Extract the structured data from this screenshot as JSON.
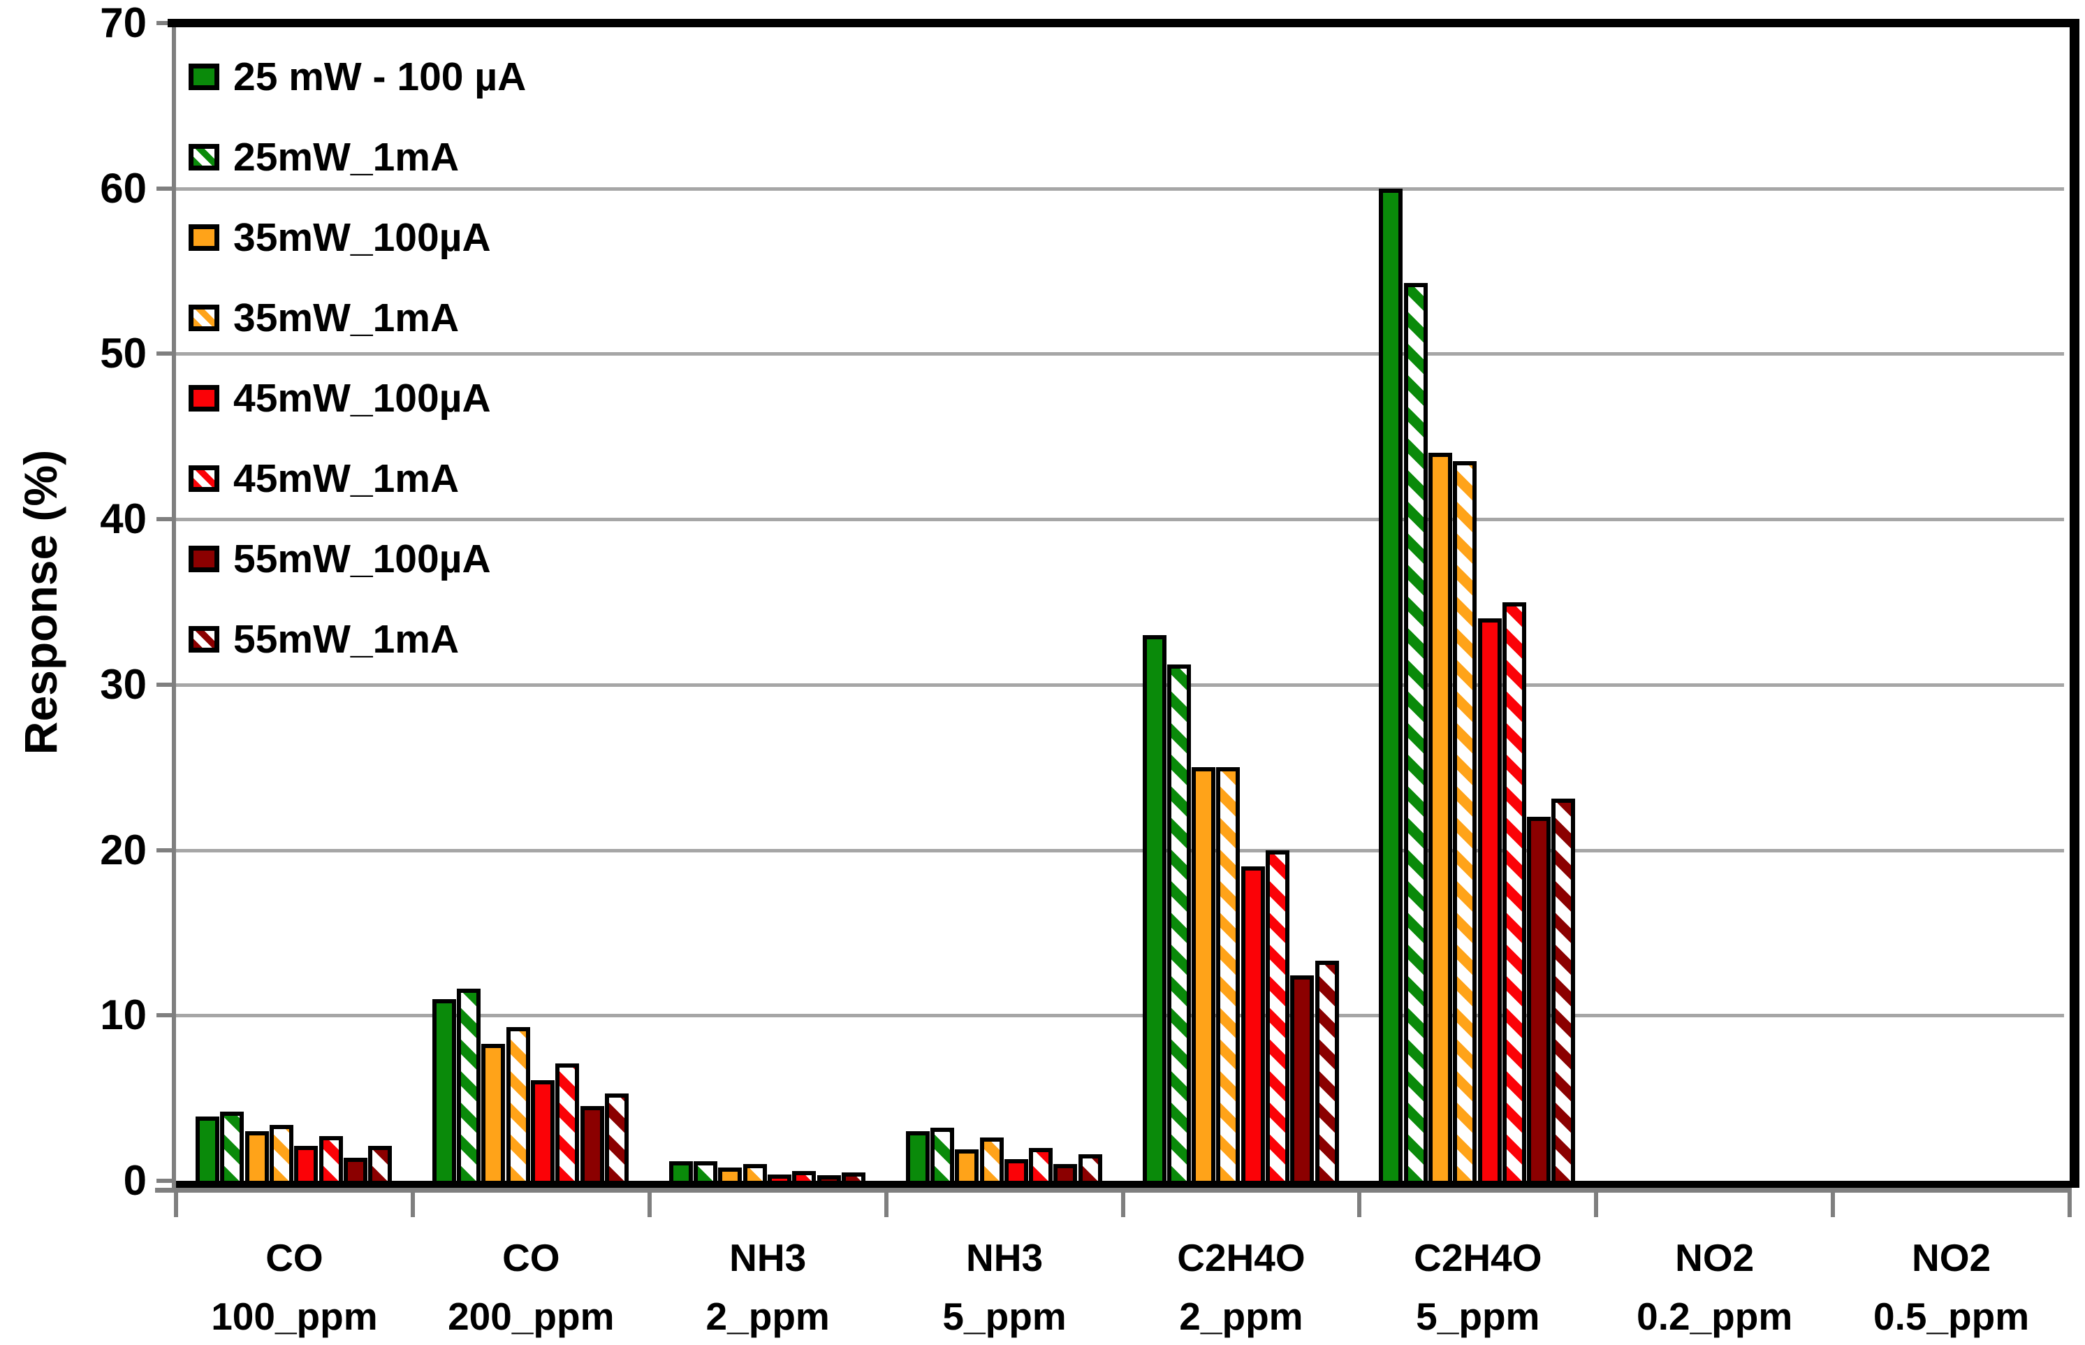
{
  "chart_data": {
    "type": "bar",
    "title": "",
    "ylabel": "Response (%)",
    "xlabel": "",
    "ylim": [
      0,
      70
    ],
    "ytick_step": 10,
    "yticks": [
      0,
      10,
      20,
      30,
      40,
      50,
      60,
      70
    ],
    "grid": "horizontal",
    "legend_position": "inside-top-left",
    "bar_outline_color": "#000000",
    "gridline_color": "#a6a6a6",
    "axis_color": "#7f7f7f",
    "categories": [
      {
        "line1": "CO",
        "line2": "100_ppm"
      },
      {
        "line1": "CO",
        "line2": "200_ppm"
      },
      {
        "line1": "NH3",
        "line2": "2_ppm"
      },
      {
        "line1": "NH3",
        "line2": "5_ppm"
      },
      {
        "line1": "C2H4O",
        "line2": "2_ppm"
      },
      {
        "line1": "C2H4O",
        "line2": "5_ppm"
      },
      {
        "line1": "NO2",
        "line2": "0.2_ppm"
      },
      {
        "line1": "NO2",
        "line2": "0.5_ppm"
      }
    ],
    "series": [
      {
        "name": "25 mW - 100 µA",
        "color": "#0a8a0a",
        "fill": "solid",
        "values": [
          3.9,
          11.0,
          1.2,
          3.0,
          33.0,
          60.0,
          0,
          0
        ]
      },
      {
        "name": "25mW_1mA",
        "color": "#0a8a0a",
        "fill": "hatch",
        "values": [
          4.2,
          11.6,
          1.2,
          3.2,
          31.2,
          54.3,
          0,
          0
        ]
      },
      {
        "name": "35mW_100µA",
        "color": "#ffa319",
        "fill": "solid",
        "values": [
          3.0,
          8.3,
          0.8,
          1.9,
          25.0,
          44.0,
          0,
          0
        ]
      },
      {
        "name": "35mW_1mA",
        "color": "#ffa319",
        "fill": "hatch",
        "values": [
          3.4,
          9.3,
          1.0,
          2.6,
          25.0,
          43.5,
          0,
          0
        ]
      },
      {
        "name": "45mW_100µA",
        "color": "#fb0207",
        "fill": "solid",
        "values": [
          2.1,
          6.1,
          0.4,
          1.3,
          19.0,
          34.0,
          0,
          0
        ]
      },
      {
        "name": "45mW_1mA",
        "color": "#fb0207",
        "fill": "hatch",
        "values": [
          2.7,
          7.1,
          0.6,
          2.0,
          20.0,
          35.0,
          0,
          0
        ]
      },
      {
        "name": "55mW_100µA",
        "color": "#8b0000",
        "fill": "solid",
        "values": [
          1.4,
          4.5,
          0.3,
          1.0,
          12.4,
          22.0,
          0,
          0
        ]
      },
      {
        "name": "55mW_1mA",
        "color": "#8b0000",
        "fill": "hatch",
        "values": [
          2.1,
          5.3,
          0.5,
          1.6,
          13.3,
          23.1,
          0,
          0
        ]
      }
    ]
  }
}
